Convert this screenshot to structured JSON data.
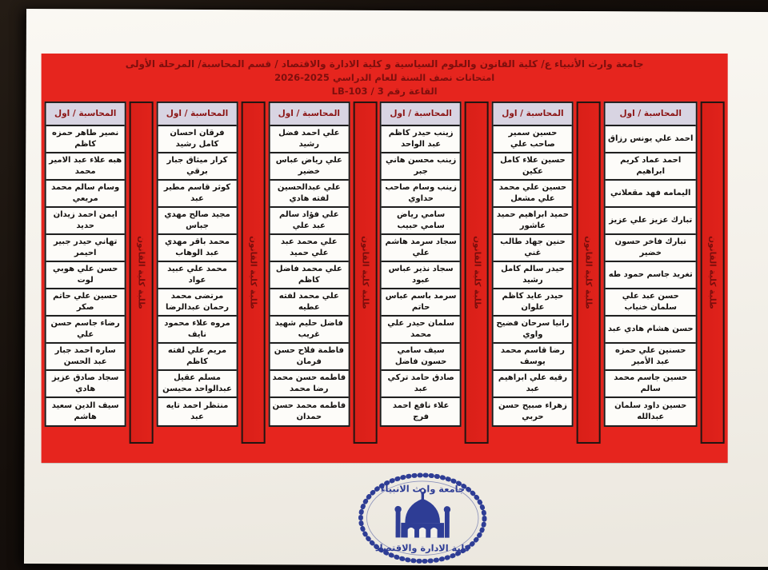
{
  "board": {
    "title_line1": "جامعة وارث الأنبياء ع/ كلية القانون والعلوم السياسية و كلية الادارة والاقتصاد / قسم المحاسبة/ المرحلة الأولى",
    "title_line2": "امتحانات نصف السنة للعام الدراسي 2025-2026",
    "title_line3": "القاعة رقم 3 / LB-103"
  },
  "column_header": "المحاسبة / اول",
  "divider_label": "طلبة كلية القانون",
  "columns": [
    {
      "names": [
        "احمد علي يونس رزاق",
        "احمد عماد كريم ابراهيم",
        "اليمامه فهد مقعلاني",
        "تبارك عزيز علي عزيز",
        "تبارك فاخر حسون خضير",
        "تغريد جاسم حمود طه",
        "حسن عبد علي سلمان خنياب",
        "حسن هشام هادي عبد",
        "حسنين علي حمزه عبد الأمير",
        "حسين جاسم محمد سالم",
        "حسين داود سلمان عبدالله"
      ]
    },
    {
      "names": [
        "حسين سمير صاحب علي",
        "حسين علاء كامل عكين",
        "حسين علي محمد علي مشعل",
        "حميد ابراهيم حميد عاشور",
        "حنين جهاد طالب غني",
        "حيدر سالم كامل رشيد",
        "حيدر عايد كاظم علوان",
        "رانيا سرحان فضيح واوي",
        "رضا قاسم محمد يوسف",
        "رقيه علي ابراهيم عبد",
        "زهراء صبيح حسن حربي"
      ]
    },
    {
      "names": [
        "زينب حيدر كاظم عبد الواحد",
        "زينب محسن هاني جبر",
        "زينب وسام صاحب حداوي",
        "سامي رياض سامي حبيب",
        "سجاد سرمد هاشم علي",
        "سجاد نذير عباس عبود",
        "سرمد باسم عباس حاتم",
        "سلمان حيدر علي محمد",
        "سيف سامي حسون فاضل",
        "صادق حامد تركي عبد",
        "علاء نافع احمد فرج"
      ]
    },
    {
      "names": [
        "علي احمد فضل رشيد",
        "علي رياض عباس خضير",
        "علي عبدالحسين لفته هادي",
        "علي فؤاد سالم عبد علي",
        "علي محمد عبد علي حميد",
        "علي محمد فاضل كاظم",
        "علي محمد لفته عطيه",
        "فاضل حليم شهيد غريب",
        "فاطمة فلاح حسن فرمان",
        "فاطمه حسن محمد رضا محمد",
        "فاطمه محمد حسن حمدان"
      ]
    },
    {
      "names": [
        "فرقان احسان كامل رشيد",
        "كرار ميثاق جبار برقي",
        "كوثر قاسم مطير عبد",
        "مجيد صالح مهدي جباس",
        "محمد باقر مهدي عبد الوهاب",
        "محمد علي عبيد عواد",
        "مرتضى محمد رحمان عبدالرضا",
        "مروه علاء محمود نايف",
        "مريم علي لفته كاظم",
        "مسلم عقيل عبدالواحد محيسن",
        "منتظر احمد تايه عبد"
      ]
    },
    {
      "names": [
        "نصير طاهر حمزه كاظم",
        "هبه علاء عبد الامير محمد",
        "وسام سالم محمد مريعي",
        "ايمن احمد زيدان حديد",
        "تهاني حيدر جبير احيمر",
        "حسن علي هوبي لوت",
        "حسين علي حاتم صكر",
        "رضاء جاسم حسن علي",
        "ساره احمد جبار عبد الحسن",
        "سجاد صادق عزيز هادي",
        "سيف الدين سعيد هاشم"
      ]
    }
  ],
  "logo": {
    "top_text": "جامعة وارث الانبياء",
    "bottom_text": "كلية الادارة والاقتصاد"
  },
  "colors": {
    "board_red": "#e6251e",
    "divider_red": "#dd2019",
    "header_cell_bg": "#d8d4e2",
    "maroon_text": "#7d0f0d",
    "logo_blue": "#2e3d95"
  }
}
